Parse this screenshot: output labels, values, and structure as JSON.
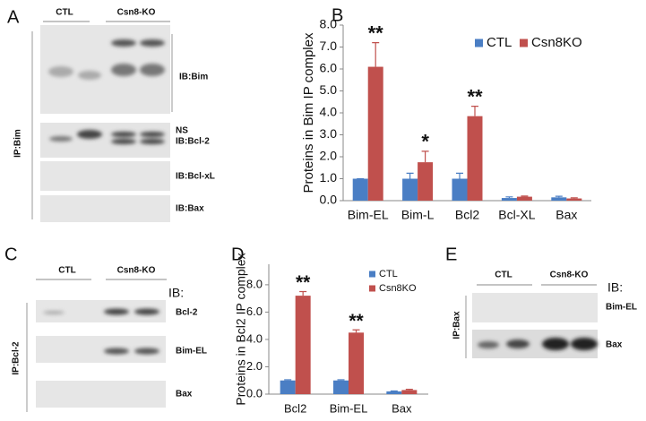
{
  "panels": {
    "A": {
      "letter": "A",
      "groups": [
        "CTL",
        "Csn8-KO"
      ],
      "ip": "IP:Bim",
      "labels": [
        "IB:Bim",
        "NS",
        "IB:Bcl-2",
        "IB:Bcl-xL",
        "IB:Bax"
      ]
    },
    "B": {
      "letter": "B"
    },
    "C": {
      "letter": "C",
      "groups": [
        "CTL",
        "Csn8-KO"
      ],
      "ib": "IB:",
      "ip": "IP:Bcl-2",
      "labels": [
        "Bcl-2",
        "Bim-EL",
        "Bax"
      ]
    },
    "D": {
      "letter": "D"
    },
    "E": {
      "letter": "E",
      "groups": [
        "CTL",
        "Csn8-KO"
      ],
      "ib": "IB:",
      "ip": "IP:Bax",
      "labels": [
        "Bim-EL",
        "Bax"
      ]
    }
  },
  "chart_data": [
    {
      "type": "bar",
      "y_label": "Proteins in Bim IP complex",
      "categories": [
        "Bim-EL",
        "Bim-L",
        "Bcl2",
        "Bcl-XL",
        "Bax"
      ],
      "series": [
        {
          "name": "CTL",
          "color": "#4a7ec4",
          "values": [
            1.0,
            1.0,
            1.0,
            0.12,
            0.15
          ],
          "errors": [
            0.0,
            0.25,
            0.25,
            0.05,
            0.05
          ]
        },
        {
          "name": "Csn8KO",
          "color": "#c0504d",
          "values": [
            6.1,
            1.75,
            3.85,
            0.18,
            0.1
          ],
          "errors": [
            1.1,
            0.5,
            0.45,
            0.03,
            0.03
          ]
        }
      ],
      "annotations": [
        {
          "text": "**",
          "category": "Bim-EL"
        },
        {
          "text": "*",
          "category": "Bim-L"
        },
        {
          "text": "**",
          "category": "Bcl2"
        }
      ],
      "ylim": [
        0,
        8
      ],
      "yticks": [
        {
          "value": 0,
          "label": "0.0"
        },
        {
          "value": 1,
          "label": "1.0"
        },
        {
          "value": 2,
          "label": "2.0"
        },
        {
          "value": 3,
          "label": "3.0"
        },
        {
          "value": 4,
          "label": "4.0"
        },
        {
          "value": 5,
          "label": "5.0"
        },
        {
          "value": 6,
          "label": "6.0"
        },
        {
          "value": 7,
          "label": "7.0"
        },
        {
          "value": 8,
          "label": "8.0"
        }
      ],
      "legend": "top-right"
    },
    {
      "type": "bar",
      "y_label": "Proteins in Bcl2 IP complex",
      "categories": [
        "Bcl2",
        "Bim-EL",
        "Bax"
      ],
      "series": [
        {
          "name": "CTL",
          "color": "#4a7ec4",
          "values": [
            1.0,
            1.0,
            0.2
          ],
          "errors": [
            0.05,
            0.05,
            0.03
          ]
        },
        {
          "name": "Csn8KO",
          "color": "#c0504d",
          "values": [
            7.2,
            4.5,
            0.3
          ],
          "errors": [
            0.3,
            0.2,
            0.05
          ]
        }
      ],
      "annotations": [
        {
          "text": "**",
          "category": "Bcl2"
        },
        {
          "text": "**",
          "category": "Bim-EL"
        }
      ],
      "ylim": [
        0,
        9.5
      ],
      "yticks": [
        {
          "value": 0,
          "label": "0.0"
        },
        {
          "value": 2,
          "label": "2.0"
        },
        {
          "value": 4,
          "label": "4.0"
        },
        {
          "value": 6,
          "label": "6.0"
        },
        {
          "value": 8,
          "label": "8.0"
        }
      ],
      "legend": "top-right"
    }
  ]
}
